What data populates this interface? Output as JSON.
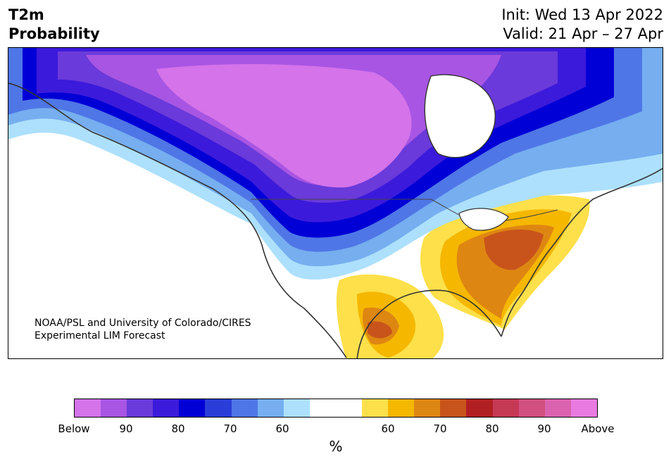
{
  "header": {
    "variable": "T2m",
    "product": "Probability",
    "init": "Init: Wed 13 Apr 2022",
    "valid": "Valid: 21 Apr – 27 Apr"
  },
  "credit": {
    "line1": "NOAA/PSL and University of Colorado/CIRES",
    "line2": "Experimental LIM Forecast"
  },
  "colorbar": {
    "unit": "%",
    "colors": [
      "#d473ea",
      "#a855e3",
      "#6a3ada",
      "#3c1adb",
      "#0000d6",
      "#2a3dd9",
      "#4f76e6",
      "#76aef0",
      "#ade0fc",
      "#ffffff",
      "#ffffff",
      "#fde04a",
      "#f5b700",
      "#de8612",
      "#c8541b",
      "#b21f22",
      "#c53955",
      "#d2507f",
      "#db62af",
      "#e87ae0"
    ],
    "ticks": [
      "Below",
      "90",
      "80",
      "70",
      "60",
      "60",
      "70",
      "80",
      "90",
      "Above"
    ]
  },
  "map": {
    "anomaly_regions": [
      {
        "label": "central-canada-core",
        "category": "Below",
        "color": "#d473ea"
      },
      {
        "label": "northwest-canada",
        "category": "90",
        "color": "#a855e3"
      },
      {
        "label": "western-us-band",
        "category": "80",
        "color": "#0000d6"
      },
      {
        "label": "eastern-canada",
        "category": "70",
        "color": "#4f76e6"
      },
      {
        "label": "atlantic-canada",
        "category": "60",
        "color": "#ade0fc"
      },
      {
        "label": "southeast-us",
        "category": "70",
        "color": "#de8612"
      },
      {
        "label": "mid-atlantic-core",
        "category": "70",
        "color": "#c8541b"
      },
      {
        "label": "mexico-gulf",
        "category": "60",
        "color": "#f5b700"
      }
    ]
  }
}
